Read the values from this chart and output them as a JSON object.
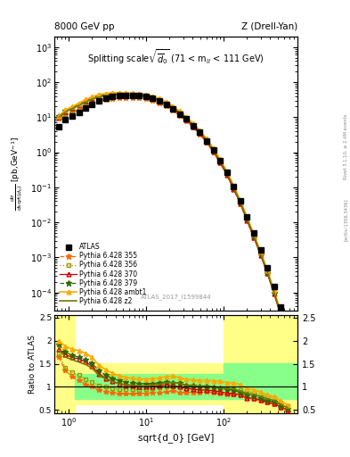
{
  "title_top_left": "8000 GeV pp",
  "title_top_right": "Z (Drell-Yan)",
  "plot_title": "Splitting scale $\\sqrt{\\overline{d}_0}$ (71 < m$_{ll}$ < 111 GeV)",
  "watermark": "ATLAS_2017_I1599844",
  "side_text": "Rivet 3.1.10, ≥ 2.4M events",
  "side_text2": "[arXiv:1306.3436]",
  "x_data": [
    0.75,
    0.9,
    1.1,
    1.35,
    1.65,
    2.0,
    2.45,
    3.0,
    3.65,
    4.45,
    5.45,
    6.65,
    8.1,
    9.9,
    12.1,
    14.8,
    18.1,
    22.1,
    27.0,
    33.0,
    40.3,
    49.3,
    60.3,
    73.7,
    90.1,
    110.1,
    134.6,
    164.6,
    201.1,
    245.8,
    300.5,
    367.0,
    448.6,
    548.4,
    670.3
  ],
  "atlas_y": [
    5.5,
    8.5,
    11.0,
    14.0,
    18.5,
    23.5,
    30.0,
    35.0,
    38.5,
    40.5,
    41.5,
    41.5,
    40.5,
    38.5,
    34.0,
    28.5,
    22.5,
    17.0,
    12.5,
    8.8,
    5.8,
    3.7,
    2.15,
    1.15,
    0.57,
    0.265,
    0.105,
    0.041,
    0.0145,
    0.0049,
    0.00165,
    0.00052,
    0.000145,
    3.9e-05,
    9.5e-06
  ],
  "py355_y": [
    9.0,
    11.5,
    13.5,
    16.0,
    19.5,
    23.5,
    28.0,
    31.5,
    33.5,
    34.5,
    35.0,
    35.0,
    34.5,
    33.0,
    29.5,
    25.0,
    20.0,
    15.5,
    11.0,
    7.7,
    5.1,
    3.2,
    1.9,
    1.0,
    0.49,
    0.22,
    0.088,
    0.033,
    0.011,
    0.0036,
    0.00115,
    0.00034,
    9e-05,
    2.1e-05,
    4.5e-06
  ],
  "py356_y": [
    9.5,
    12.0,
    14.5,
    17.5,
    21.5,
    26.0,
    31.0,
    35.0,
    37.5,
    38.5,
    39.0,
    39.0,
    38.0,
    36.5,
    33.0,
    28.0,
    22.5,
    17.0,
    12.5,
    8.5,
    5.7,
    3.6,
    2.1,
    1.1,
    0.55,
    0.255,
    0.1,
    0.038,
    0.013,
    0.0043,
    0.00138,
    0.00041,
    0.00011,
    2.6e-05,
    5.5e-06
  ],
  "py370_y": [
    10.0,
    14.5,
    18.0,
    22.5,
    28.5,
    34.0,
    38.5,
    41.5,
    43.0,
    43.5,
    43.0,
    42.5,
    41.0,
    38.5,
    34.5,
    29.0,
    23.5,
    17.5,
    12.5,
    8.5,
    5.5,
    3.45,
    2.0,
    1.05,
    0.51,
    0.23,
    0.09,
    0.034,
    0.011,
    0.0037,
    0.00118,
    0.00035,
    9.2e-05,
    2.2e-05,
    4.8e-06
  ],
  "py379_y": [
    10.5,
    15.0,
    18.5,
    23.0,
    29.5,
    35.5,
    40.5,
    44.0,
    45.5,
    46.0,
    45.5,
    45.0,
    43.5,
    41.0,
    36.5,
    31.0,
    25.0,
    18.5,
    13.5,
    9.0,
    5.9,
    3.7,
    2.15,
    1.13,
    0.55,
    0.25,
    0.097,
    0.036,
    0.012,
    0.0039,
    0.00124,
    0.000365,
    9.7e-05,
    2.3e-05,
    5e-06
  ],
  "pyambt1_y": [
    11.0,
    16.0,
    20.0,
    25.0,
    32.0,
    38.5,
    44.0,
    48.0,
    50.0,
    50.5,
    50.0,
    49.5,
    47.5,
    45.0,
    40.0,
    34.0,
    27.5,
    21.0,
    15.0,
    10.2,
    6.7,
    4.2,
    2.45,
    1.3,
    0.635,
    0.29,
    0.114,
    0.043,
    0.014,
    0.0046,
    0.00146,
    0.000432,
    0.000114,
    2.7e-05,
    5.8e-06
  ],
  "pyz2_y": [
    10.0,
    14.0,
    17.5,
    21.5,
    27.5,
    33.0,
    37.5,
    41.0,
    43.0,
    43.5,
    43.5,
    43.0,
    41.5,
    39.5,
    35.5,
    30.0,
    24.5,
    18.5,
    13.5,
    9.1,
    6.0,
    3.75,
    2.2,
    1.15,
    0.56,
    0.255,
    0.1,
    0.037,
    0.0124,
    0.0041,
    0.0013,
    0.000386,
    0.000102,
    2.42e-05,
    5.2e-06
  ],
  "atlas_color": "#000000",
  "py355_color": "#FF6600",
  "py356_color": "#999900",
  "py370_color": "#CC0000",
  "py379_color": "#336600",
  "pyambt1_color": "#FFAA00",
  "pyz2_color": "#777700",
  "ylim_main": [
    3e-05,
    2000.0
  ],
  "ylim_ratio": [
    0.42,
    2.55
  ],
  "xlim": [
    0.65,
    900
  ],
  "ratio_yticks": [
    0.5,
    1.0,
    1.5,
    2.0,
    2.5
  ],
  "ratio_ytick_labels": [
    "0.5",
    "1",
    "1.5",
    "2",
    "2.5"
  ]
}
